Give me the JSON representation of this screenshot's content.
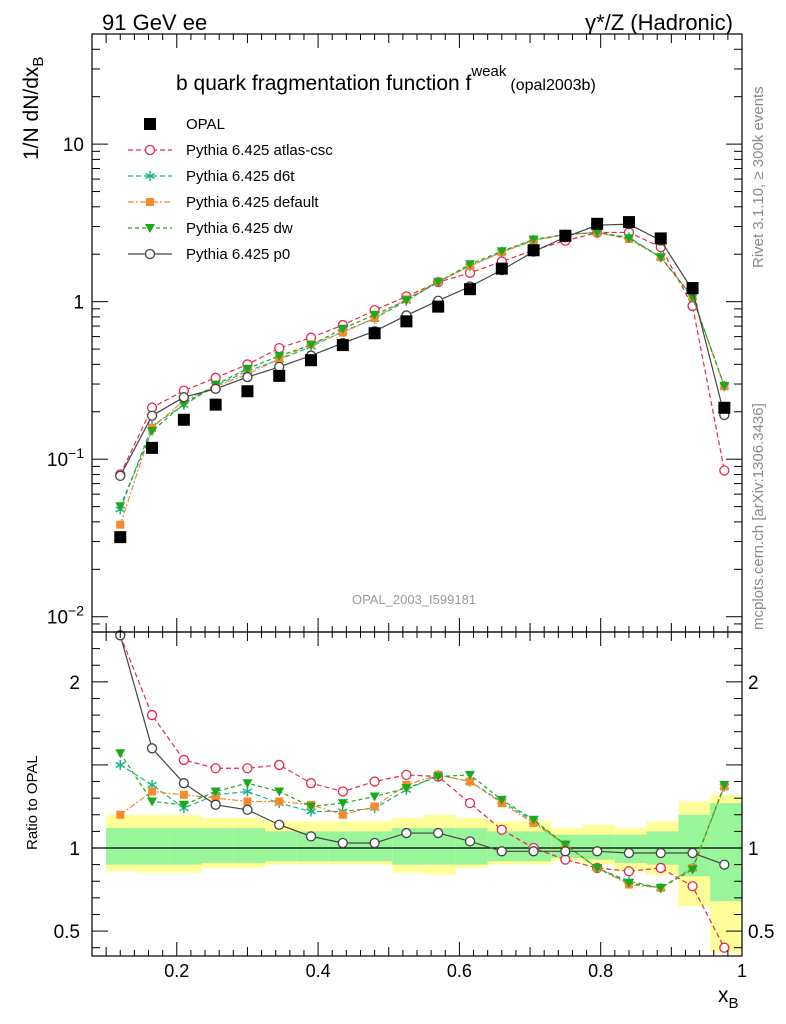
{
  "header": {
    "left": "91 GeV ee",
    "right": "γ*/Z (Hadronic)"
  },
  "title": {
    "main": "b quark fragmentation function f",
    "superscript": "weak",
    "tag": "(opal2003b)"
  },
  "side_labels": {
    "rivet": "Rivet 3.1.10, ≥ 300k events",
    "mcplots": "mcplots.cern.ch [arXiv:1306.3436]"
  },
  "watermark": "OPAL_2003_I599181",
  "chart_data": {
    "type": "line",
    "main_panel": {
      "ylabel": "1/N dN/dx_B",
      "yscale": "log",
      "ylim": [
        0.008,
        50
      ],
      "yticks": [
        {
          "value": 0.01,
          "base": "10",
          "exp": "−2"
        },
        {
          "value": 0.1,
          "base": "10",
          "exp": "−1"
        },
        {
          "value": 1,
          "base": "1",
          "exp": ""
        },
        {
          "value": 10,
          "base": "10",
          "exp": ""
        }
      ]
    },
    "ratio_panel": {
      "ylabel": "Ratio to OPAL",
      "ylim": [
        0.35,
        2.3
      ],
      "yticks": [
        0.5,
        1,
        2
      ]
    },
    "xlabel": "x_B",
    "xlim": [
      0.08,
      1.0
    ],
    "xticks": [
      0.2,
      0.4,
      0.6,
      0.8,
      1
    ],
    "x": [
      0.12,
      0.165,
      0.21,
      0.255,
      0.3,
      0.345,
      0.39,
      0.435,
      0.48,
      0.525,
      0.57,
      0.615,
      0.66,
      0.705,
      0.75,
      0.795,
      0.84,
      0.885,
      0.93,
      0.975
    ],
    "bins": [
      0.1,
      0.145,
      0.19,
      0.235,
      0.28,
      0.325,
      0.37,
      0.415,
      0.46,
      0.505,
      0.55,
      0.595,
      0.64,
      0.685,
      0.73,
      0.775,
      0.82,
      0.865,
      0.91,
      0.955,
      1.0
    ],
    "opal": [
      0.032,
      0.118,
      0.178,
      0.222,
      0.27,
      0.338,
      0.425,
      0.53,
      0.63,
      0.75,
      0.93,
      1.2,
      1.62,
      2.12,
      2.62,
      3.12,
      3.2,
      2.52,
      1.22,
      0.212
    ],
    "band_inner": [
      [
        0.9,
        1.12
      ],
      [
        0.9,
        1.12
      ],
      [
        0.9,
        1.12
      ],
      [
        0.91,
        1.12
      ],
      [
        0.91,
        1.12
      ],
      [
        0.92,
        1.1
      ],
      [
        0.92,
        1.1
      ],
      [
        0.92,
        1.1
      ],
      [
        0.92,
        1.1
      ],
      [
        0.9,
        1.12
      ],
      [
        0.9,
        1.12
      ],
      [
        0.9,
        1.12
      ],
      [
        0.92,
        1.1
      ],
      [
        0.92,
        1.1
      ],
      [
        0.94,
        1.08
      ],
      [
        0.93,
        1.08
      ],
      [
        0.91,
        1.08
      ],
      [
        0.9,
        1.1
      ],
      [
        0.83,
        1.2
      ],
      [
        0.68,
        1.27
      ]
    ],
    "band_outer": [
      [
        0.86,
        1.2
      ],
      [
        0.85,
        1.2
      ],
      [
        0.85,
        1.2
      ],
      [
        0.88,
        1.18
      ],
      [
        0.88,
        1.18
      ],
      [
        0.9,
        1.16
      ],
      [
        0.9,
        1.16
      ],
      [
        0.9,
        1.16
      ],
      [
        0.9,
        1.16
      ],
      [
        0.85,
        1.18
      ],
      [
        0.84,
        1.2
      ],
      [
        0.88,
        1.18
      ],
      [
        0.9,
        1.16
      ],
      [
        0.9,
        1.16
      ],
      [
        0.92,
        1.12
      ],
      [
        0.9,
        1.14
      ],
      [
        0.86,
        1.12
      ],
      [
        0.84,
        1.16
      ],
      [
        0.65,
        1.28
      ],
      [
        0.37,
        1.32
      ]
    ],
    "series": [
      {
        "name": "OPAL",
        "color": "#000000",
        "marker": "square",
        "dash": ""
      },
      {
        "name": "Pythia 6.425 atlas-csc",
        "color": "#e8294f",
        "marker": "open-circle",
        "dash": "5,3",
        "ratio": [
          2.5,
          1.8,
          1.53,
          1.48,
          1.48,
          1.5,
          1.39,
          1.34,
          1.4,
          1.44,
          1.43,
          1.27,
          1.11,
          1.0,
          0.93,
          0.88,
          0.86,
          0.88,
          0.77,
          0.4
        ]
      },
      {
        "name": "Pythia 6.425 d6t",
        "color": "#1bb58c",
        "marker": "star",
        "dash": "5,3",
        "ratio": [
          1.5,
          1.38,
          1.24,
          1.32,
          1.34,
          1.27,
          1.22,
          1.22,
          1.24,
          1.35,
          1.44,
          1.4,
          1.28,
          1.16,
          1.02,
          0.88,
          0.8,
          0.76,
          0.88,
          1.37
        ]
      },
      {
        "name": "Pythia 6.425 default",
        "color": "#f58a2e",
        "marker": "filled-square",
        "dash": "6,2,2,2",
        "ratio": [
          1.2,
          1.34,
          1.32,
          1.3,
          1.28,
          1.28,
          1.26,
          1.2,
          1.25,
          1.38,
          1.44,
          1.4,
          1.27,
          1.15,
          1.02,
          0.88,
          0.78,
          0.76,
          0.88,
          1.37
        ]
      },
      {
        "name": "Pythia 6.425 dw",
        "color": "#1ea81e",
        "marker": "triangle-down",
        "dash": "4,3",
        "ratio": [
          1.57,
          1.28,
          1.26,
          1.34,
          1.39,
          1.34,
          1.25,
          1.27,
          1.31,
          1.36,
          1.43,
          1.44,
          1.29,
          1.17,
          1.02,
          0.88,
          0.79,
          0.76,
          0.87,
          1.38
        ]
      },
      {
        "name": "Pythia 6.425 p0",
        "color": "#444444",
        "marker": "open-circle",
        "dash": "",
        "ratio": [
          2.45,
          1.6,
          1.39,
          1.26,
          1.23,
          1.14,
          1.07,
          1.03,
          1.03,
          1.09,
          1.09,
          1.04,
          0.98,
          0.98,
          0.98,
          0.98,
          0.97,
          0.97,
          0.97,
          0.9
        ]
      }
    ]
  }
}
